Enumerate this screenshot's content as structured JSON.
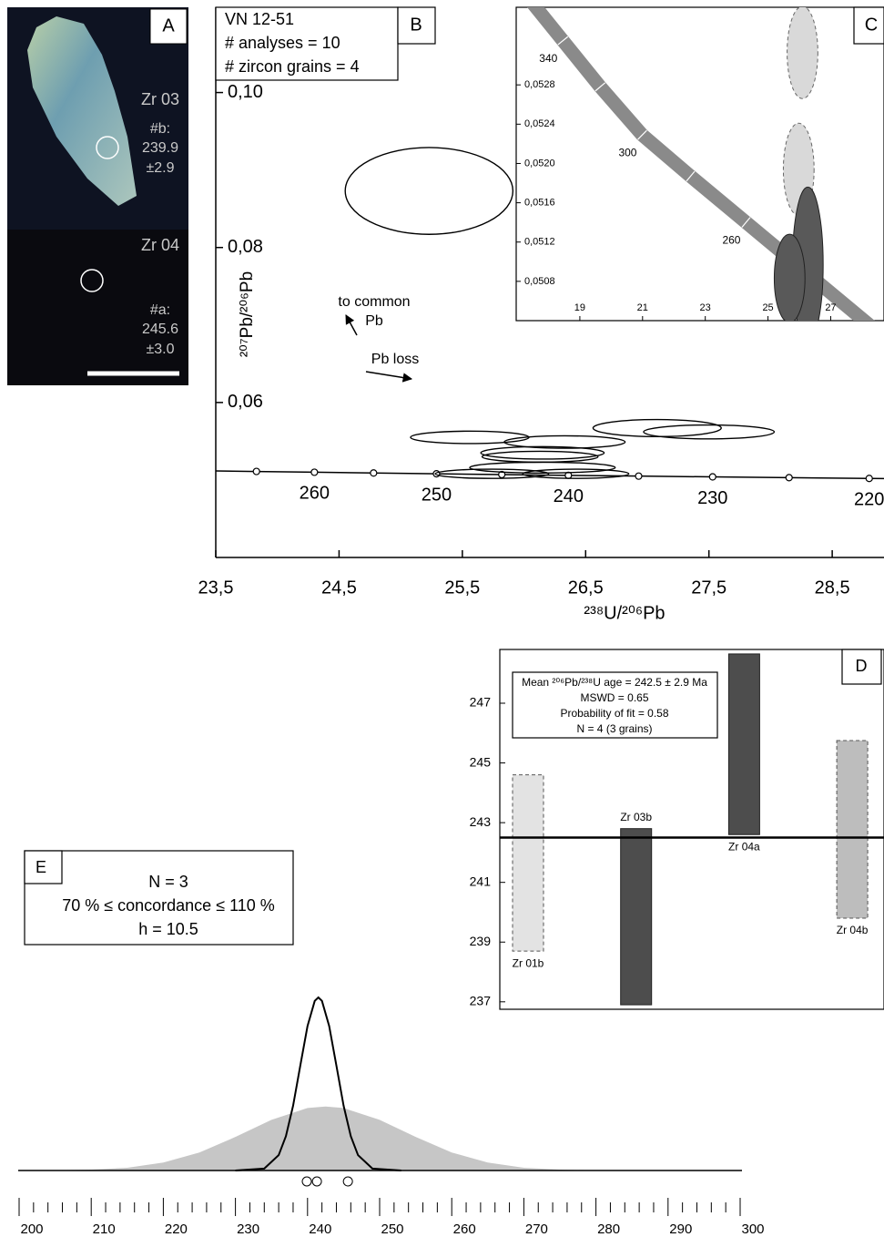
{
  "image_panel": {
    "letter": "A",
    "grains": [
      {
        "name": "Zr 03",
        "spot": "#b:",
        "age": 239.9,
        "error": "±2.9"
      },
      {
        "name": "Zr 04",
        "spot": "#a:",
        "age": 245.6,
        "error": "±3.0"
      }
    ]
  },
  "chart_data": [
    {
      "type": "concordia",
      "panel": "B",
      "sample": "VN 12-51",
      "info": [
        "# analyses = 10",
        "# zircon grains = 4"
      ],
      "xlabel": "²³⁸U/²⁰⁶Pb",
      "ylabel": "²⁰⁷Pb/²⁰⁶Pb",
      "xlim": [
        23.5,
        28.92
      ],
      "ylim": [
        0.04,
        0.111
      ],
      "xticks": [
        {
          "value": 23.5,
          "label": "23,5"
        },
        {
          "value": 24.5,
          "label": "24,5"
        },
        {
          "value": 25.5,
          "label": "25,5"
        },
        {
          "value": 26.5,
          "label": "26,5"
        },
        {
          "value": 27.5,
          "label": "27,5"
        },
        {
          "value": 28.5,
          "label": "28,5"
        }
      ],
      "yticks": [
        {
          "value": 0.06,
          "label": "0,06"
        },
        {
          "value": 0.08,
          "label": "0,08"
        },
        {
          "value": 0.1,
          "label": "0,10"
        }
      ],
      "concordia": {
        "x": [
          23.83,
          24.3,
          24.78,
          25.29,
          25.82,
          26.36,
          26.93,
          27.53,
          28.15,
          28.8
        ],
        "y": [
          0.0511,
          0.051,
          0.0509,
          0.0508,
          0.0507,
          0.0506,
          0.0505,
          0.0504,
          0.0503,
          0.0502
        ],
        "ages": [
          null,
          260,
          null,
          250,
          null,
          240,
          null,
          230,
          null,
          220
        ]
      },
      "ellipses": {
        "x": [
          25.23,
          25.56,
          26.33,
          27.08,
          27.5,
          26.15,
          26.13,
          26.15,
          25.74,
          26.42
        ],
        "y": [
          0.0873,
          0.0555,
          0.0549,
          0.0567,
          0.0562,
          0.0535,
          0.053,
          0.0516,
          0.0508,
          0.0508
        ],
        "rx": [
          0.68,
          0.48,
          0.49,
          0.52,
          0.53,
          0.5,
          0.47,
          0.59,
          0.46,
          0.43
        ],
        "ry": [
          0.0056,
          0.0008,
          0.0008,
          0.0011,
          0.0009,
          0.0008,
          0.0007,
          0.0007,
          0.0006,
          0.0006
        ]
      },
      "annotations": [
        "to common",
        "Pb",
        "Pb loss"
      ]
    },
    {
      "type": "concordia-inset",
      "panel": "C",
      "xlim": [
        16.97,
        28.7
      ],
      "ylim": [
        0.0504,
        0.05359
      ],
      "xticks": [
        19,
        21,
        23,
        25,
        27
      ],
      "yticks": [
        {
          "value": 0.0508,
          "label": "0,0508"
        },
        {
          "value": 0.0512,
          "label": "0,0512"
        },
        {
          "value": 0.0516,
          "label": "0,0516"
        },
        {
          "value": 0.052,
          "label": "0,0520"
        },
        {
          "value": 0.0524,
          "label": "0,0524"
        },
        {
          "value": 0.0528,
          "label": "0,0528"
        }
      ],
      "concordia": {
        "x": [
          18.46,
          19.65,
          20.99,
          22.53,
          24.3
        ],
        "y": [
          0.05325,
          0.05278,
          0.05229,
          0.05187,
          0.0514
        ],
        "ages": [
          340,
          null,
          300,
          null,
          260
        ],
        "color": "#8a8a8a"
      },
      "ellipses": {
        "x": [
          26.1,
          25.98,
          26.27,
          25.69
        ],
        "y": [
          0.05313,
          0.05194,
          0.05097,
          0.05083
        ],
        "rx": [
          0.49,
          0.49,
          0.49,
          0.49
        ],
        "ry": [
          0.00047,
          0.00047,
          0.00079,
          0.00045
        ],
        "colors": [
          "#d9d9d9",
          "#d9d9d9",
          "#595959",
          "#595959"
        ],
        "dashed": [
          true,
          true,
          false,
          false
        ]
      }
    },
    {
      "type": "weighted-mean",
      "panel": "D",
      "ylim": [
        236.75,
        248.8
      ],
      "yticks": [
        237,
        239,
        241,
        243,
        245,
        247
      ],
      "categories": [
        "Zr 01b",
        "Zr 03b",
        "Zr 04a",
        "Zr 04b"
      ],
      "low": [
        238.7,
        236.9,
        242.6,
        239.8
      ],
      "high": [
        244.6,
        242.8,
        248.65,
        245.75
      ],
      "colors": [
        "#e3e3e3",
        "#4d4d4d",
        "#4d4d4d",
        "#bdbdbd"
      ],
      "dashed": [
        true,
        false,
        false,
        true
      ],
      "mean": 242.5,
      "info": [
        "Mean ²⁰⁶Pb/²³⁸U age = 242.5 ± 2.9 Ma",
        "MSWD = 0.65",
        "Probability of fit = 0.58",
        "N = 4 (3 grains)"
      ]
    },
    {
      "type": "kde",
      "panel": "E",
      "info": [
        "N = 3",
        "70 % ≤ concordance ≤ 110 %",
        "h = 10.5"
      ],
      "xlim": [
        200,
        300
      ],
      "ylim": [
        0,
        1
      ],
      "xticks": [
        200,
        210,
        220,
        230,
        240,
        250,
        260,
        270,
        280,
        290,
        300
      ],
      "minor_xticks": [
        202,
        204,
        206,
        208,
        212,
        214,
        216,
        218,
        222,
        224,
        226,
        228,
        232,
        234,
        236,
        238,
        242,
        244,
        246,
        248,
        252,
        254,
        256,
        258,
        262,
        264,
        266,
        268,
        272,
        274,
        276,
        278,
        282,
        284,
        286,
        288,
        292,
        294,
        296,
        298
      ],
      "series": [
        {
          "color": "#c6c6c6",
          "fill": true,
          "x": [
            205,
            210,
            215,
            220,
            225,
            230,
            235,
            240,
            242.5,
            245,
            250,
            255,
            260,
            265,
            270,
            275,
            280
          ],
          "values": [
            0.001,
            0.005,
            0.016,
            0.046,
            0.104,
            0.194,
            0.293,
            0.361,
            0.37,
            0.361,
            0.293,
            0.194,
            0.104,
            0.046,
            0.016,
            0.005,
            0.001
          ]
        },
        {
          "color": "#000000",
          "fill": false,
          "x": [
            230,
            234,
            236,
            237,
            238,
            239,
            240,
            241,
            241.5,
            242,
            243,
            244,
            245,
            246,
            247,
            249,
            253
          ],
          "values": [
            0,
            0.011,
            0.089,
            0.198,
            0.375,
            0.607,
            0.835,
            0.98,
            1,
            0.98,
            0.835,
            0.607,
            0.375,
            0.198,
            0.089,
            0.011,
            0
          ]
        }
      ],
      "points": [
        239.9,
        241.3,
        245.6
      ]
    }
  ]
}
